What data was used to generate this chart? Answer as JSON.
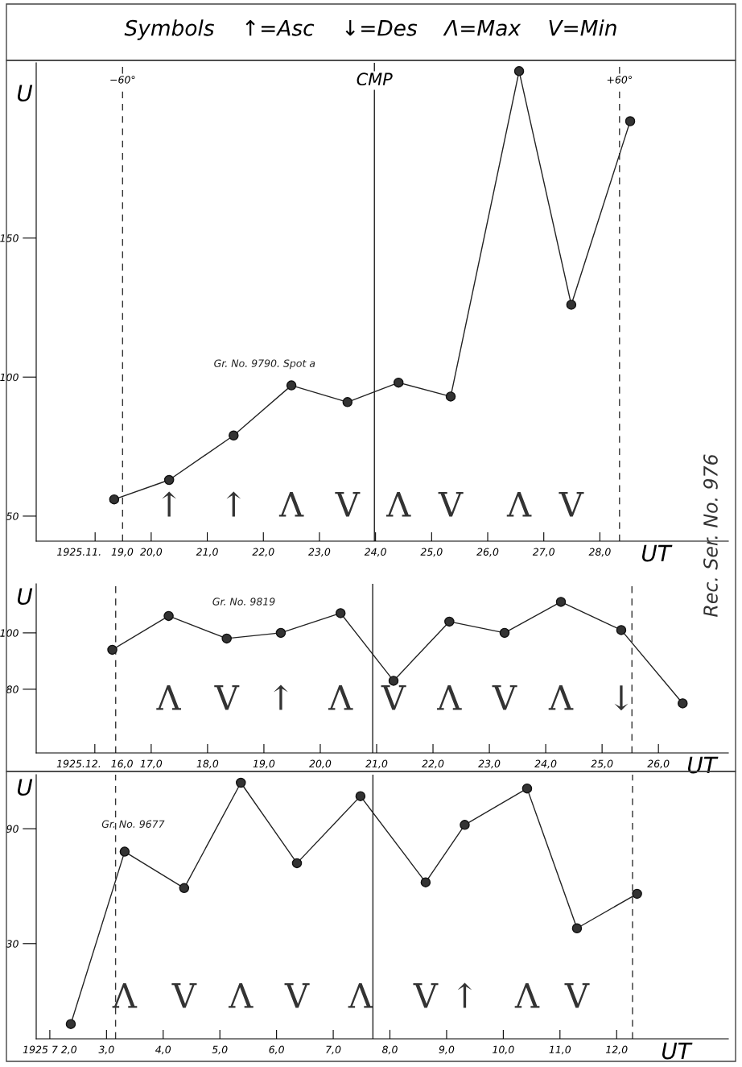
{
  "chart_data": [
    {
      "type": "line",
      "title": "Symbols    ↑=Asc    ↓=Des    Λ=Max    V=Min",
      "ylabel": "U",
      "xlabel": "UT",
      "x": [
        19.34,
        20.32,
        21.47,
        22.5,
        23.5,
        24.41,
        25.34,
        26.56,
        27.49,
        28.54
      ],
      "series": [
        {
          "name": "Gr. No. 9790. Spot a",
          "color": "#222222",
          "values": [
            56,
            63,
            79,
            97,
            91,
            98,
            93,
            210,
            126,
            192
          ]
        }
      ],
      "xlim": [
        17.95,
        30.29
      ],
      "ylim": [
        41,
        213
      ],
      "xticks": [
        {
          "value": 19,
          "label": "1925.11.   19,0"
        },
        {
          "value": 20,
          "label": "20,0"
        },
        {
          "value": 21,
          "label": "21,0"
        },
        {
          "value": 22,
          "label": "22,0"
        },
        {
          "value": 23,
          "label": "23,0"
        },
        {
          "value": 24,
          "label": "24,0"
        },
        {
          "value": 25,
          "label": "25,0"
        },
        {
          "value": 26,
          "label": "26,0"
        },
        {
          "value": 27,
          "label": "27,0"
        },
        {
          "value": 28,
          "label": "28,0"
        }
      ],
      "yticks": [
        50,
        100,
        150
      ],
      "ref_lines": [
        {
          "axis": "x",
          "value": 19.49,
          "line_style": "dashed",
          "color": "#333333"
        },
        {
          "axis": "x",
          "value": 23.98,
          "line_style": "solid",
          "color": "#222222"
        },
        {
          "axis": "x",
          "value": 28.35,
          "line_style": "dashed",
          "color": "#333333"
        }
      ],
      "annotations": [
        "↑",
        "↑",
        "Λ",
        "V",
        "Λ",
        "V",
        "Λ",
        "V",
        "−60°",
        "CMP",
        "+60°",
        "Rec. Ser. No. 976"
      ],
      "marker": "circle",
      "line_style": "solid",
      "grid": false,
      "legend": false
    },
    {
      "type": "line",
      "ylabel": "U",
      "xlabel": "UT",
      "x": [
        16.31,
        17.31,
        18.34,
        19.3,
        20.36,
        21.3,
        22.29,
        23.27,
        24.27,
        25.34,
        26.43
      ],
      "series": [
        {
          "name": "Gr. No. 9819",
          "color": "#222222",
          "values": [
            94,
            106,
            98,
            100,
            107,
            83,
            104,
            100,
            111,
            101,
            75
          ]
        }
      ],
      "xlim": [
        14.96,
        27.24
      ],
      "ylim": [
        57.4,
        117.4
      ],
      "xticks": [
        {
          "value": 16,
          "label": "1925.12.   16,0"
        },
        {
          "value": 17,
          "label": "17,0"
        },
        {
          "value": 18,
          "label": "18,0"
        },
        {
          "value": 19,
          "label": "19,0"
        },
        {
          "value": 20,
          "label": "20,0"
        },
        {
          "value": 21,
          "label": "21,0"
        },
        {
          "value": 22,
          "label": "22,0"
        },
        {
          "value": 23,
          "label": "23,0"
        },
        {
          "value": 24,
          "label": "24,0"
        },
        {
          "value": 25,
          "label": "25,0"
        },
        {
          "value": 26,
          "label": "26,0"
        }
      ],
      "yticks": [
        80,
        100
      ],
      "ref_lines": [
        {
          "axis": "x",
          "value": 16.37,
          "line_style": "dashed",
          "color": "#333333"
        },
        {
          "axis": "x",
          "value": 20.93,
          "line_style": "solid",
          "color": "#222222"
        },
        {
          "axis": "x",
          "value": 25.53,
          "line_style": "dashed",
          "color": "#333333"
        }
      ],
      "annotations": [
        "Λ",
        "V",
        "↑",
        "Λ",
        "V",
        "Λ",
        "V",
        "Λ",
        "↓"
      ],
      "marker": "circle",
      "line_style": "solid",
      "grid": false,
      "legend": false
    },
    {
      "type": "line",
      "ylabel": "U",
      "xlabel": "UT",
      "x": [
        2.37,
        3.32,
        4.37,
        5.37,
        6.36,
        7.48,
        8.63,
        9.32,
        10.42,
        11.3,
        12.36
      ],
      "series": [
        {
          "name": "Gr. No. 9677",
          "color": "#222222",
          "values": [
            -12,
            78,
            59,
            114,
            72,
            107,
            62,
            92,
            111,
            38,
            56
          ]
        }
      ],
      "xlim": [
        1.76,
        13.97
      ],
      "ylim": [
        -19.7,
        118.2
      ],
      "xticks": [
        {
          "value": 2,
          "label": "1925 7 2,0"
        },
        {
          "value": 3,
          "label": "3,0"
        },
        {
          "value": 4,
          "label": "4,0"
        },
        {
          "value": 5,
          "label": "5,0"
        },
        {
          "value": 6,
          "label": "6,0"
        },
        {
          "value": 7,
          "label": "7,0"
        },
        {
          "value": 8,
          "label": "8,0"
        },
        {
          "value": 9,
          "label": "9,0"
        },
        {
          "value": 10,
          "label": "10,0"
        },
        {
          "value": 11,
          "label": "11,0"
        },
        {
          "value": 12,
          "label": "12,0"
        }
      ],
      "yticks": [
        30,
        90
      ],
      "ref_lines": [
        {
          "axis": "x",
          "value": 3.16,
          "line_style": "dashed",
          "color": "#333333"
        },
        {
          "axis": "x",
          "value": 7.7,
          "line_style": "solid",
          "color": "#222222"
        },
        {
          "axis": "x",
          "value": 12.28,
          "line_style": "dashed",
          "color": "#333333"
        }
      ],
      "annotations": [
        "Λ",
        "V",
        "Λ",
        "V",
        "Λ",
        "V",
        "↑",
        "Λ",
        "V"
      ],
      "marker": "circle",
      "line_style": "solid",
      "grid": false,
      "legend": false
    }
  ]
}
